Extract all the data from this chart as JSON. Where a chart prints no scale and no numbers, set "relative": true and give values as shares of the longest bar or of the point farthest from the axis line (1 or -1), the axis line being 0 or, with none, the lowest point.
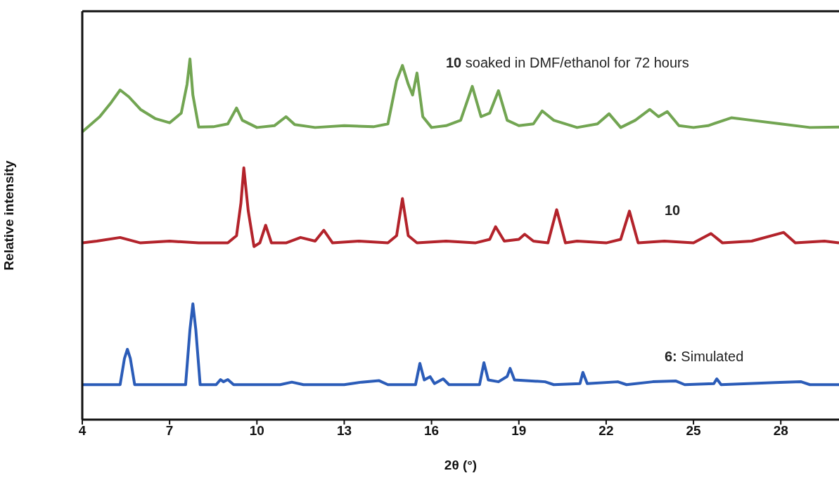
{
  "chart_data": {
    "type": "line",
    "relative": true,
    "xlabel": "2θ (°)",
    "ylabel": "Relative intensity",
    "xlim": [
      4,
      30
    ],
    "xticks": [
      4,
      7,
      10,
      13,
      16,
      19,
      22,
      25,
      28
    ],
    "marker": "none",
    "line_style": "solid",
    "series": [
      {
        "name": "10 soaked in DMF/ethanol for 72 hours",
        "color": "#72a552",
        "x": [
          4,
          4.6,
          5.0,
          5.3,
          5.6,
          6.0,
          6.5,
          7.0,
          7.4,
          7.6,
          7.7,
          7.8,
          8.0,
          8.5,
          9.0,
          9.3,
          9.5,
          10.0,
          10.6,
          11.0,
          11.3,
          12.0,
          13.0,
          14.0,
          14.5,
          14.8,
          15.0,
          15.2,
          15.35,
          15.5,
          15.7,
          16.0,
          16.5,
          17.0,
          17.4,
          17.7,
          18.0,
          18.3,
          18.6,
          19.0,
          19.5,
          19.8,
          20.2,
          21.0,
          21.7,
          22.1,
          22.5,
          23.0,
          23.5,
          23.8,
          24.1,
          24.5,
          25.0,
          25.5,
          26.3,
          27.0,
          28.0,
          29.0,
          30
        ],
        "values": [
          0.798,
          0.84,
          0.88,
          0.914,
          0.895,
          0.86,
          0.835,
          0.823,
          0.85,
          0.93,
          1.0,
          0.9,
          0.811,
          0.812,
          0.82,
          0.864,
          0.83,
          0.81,
          0.815,
          0.84,
          0.818,
          0.81,
          0.815,
          0.812,
          0.82,
          0.94,
          0.982,
          0.93,
          0.9,
          0.961,
          0.84,
          0.81,
          0.815,
          0.83,
          0.924,
          0.84,
          0.85,
          0.912,
          0.83,
          0.815,
          0.82,
          0.856,
          0.83,
          0.81,
          0.82,
          0.848,
          0.81,
          0.83,
          0.86,
          0.84,
          0.854,
          0.815,
          0.81,
          0.815,
          0.837,
          0.83,
          0.82,
          0.81,
          0.811
        ]
      },
      {
        "name": "10",
        "color": "#b3232b",
        "x": [
          4,
          4.5,
          5.3,
          6.0,
          7.0,
          8.0,
          9.0,
          9.3,
          9.45,
          9.55,
          9.7,
          9.9,
          10.1,
          10.3,
          10.5,
          11.0,
          11.5,
          12.0,
          12.3,
          12.6,
          13.5,
          14.5,
          14.8,
          15.0,
          15.2,
          15.5,
          16.5,
          17.5,
          18.0,
          18.2,
          18.5,
          19.0,
          19.2,
          19.5,
          20.0,
          20.3,
          20.6,
          21.0,
          22.0,
          22.5,
          22.8,
          23.1,
          24.0,
          25.0,
          25.6,
          26.0,
          27.0,
          28.1,
          28.5,
          29.5,
          30
        ],
        "values": [
          0.49,
          0.495,
          0.505,
          0.49,
          0.495,
          0.49,
          0.49,
          0.51,
          0.6,
          0.698,
          0.58,
          0.48,
          0.49,
          0.539,
          0.49,
          0.49,
          0.505,
          0.495,
          0.525,
          0.49,
          0.495,
          0.49,
          0.51,
          0.613,
          0.51,
          0.49,
          0.495,
          0.49,
          0.5,
          0.535,
          0.495,
          0.5,
          0.514,
          0.495,
          0.49,
          0.582,
          0.49,
          0.495,
          0.49,
          0.5,
          0.578,
          0.49,
          0.495,
          0.49,
          0.516,
          0.49,
          0.495,
          0.519,
          0.49,
          0.495,
          0.49
        ]
      },
      {
        "name": "6: Simulated",
        "color": "#2b5cb8",
        "x": [
          4,
          5.3,
          5.45,
          5.55,
          5.65,
          5.8,
          7.55,
          7.7,
          7.8,
          7.9,
          8.05,
          8.6,
          8.75,
          8.85,
          9.0,
          9.2,
          10.8,
          11.2,
          11.6,
          13.0,
          13.6,
          14.2,
          14.5,
          15.45,
          15.6,
          15.75,
          15.95,
          16.1,
          16.4,
          16.6,
          17.65,
          17.8,
          17.95,
          18.3,
          18.6,
          18.7,
          18.85,
          19.9,
          20.2,
          21.1,
          21.2,
          21.35,
          22.4,
          22.7,
          23.6,
          24.4,
          24.7,
          25.7,
          25.8,
          25.95,
          27.8,
          28.7,
          29.0,
          30
        ],
        "values": [
          0.097,
          0.097,
          0.17,
          0.195,
          0.17,
          0.097,
          0.097,
          0.25,
          0.321,
          0.25,
          0.097,
          0.097,
          0.111,
          0.105,
          0.111,
          0.097,
          0.097,
          0.104,
          0.097,
          0.097,
          0.104,
          0.108,
          0.097,
          0.097,
          0.156,
          0.11,
          0.119,
          0.1,
          0.113,
          0.097,
          0.097,
          0.158,
          0.11,
          0.105,
          0.12,
          0.142,
          0.11,
          0.105,
          0.097,
          0.1,
          0.131,
          0.1,
          0.105,
          0.097,
          0.105,
          0.107,
          0.097,
          0.1,
          0.113,
          0.097,
          0.103,
          0.105,
          0.097,
          0.097
        ]
      }
    ]
  }
}
